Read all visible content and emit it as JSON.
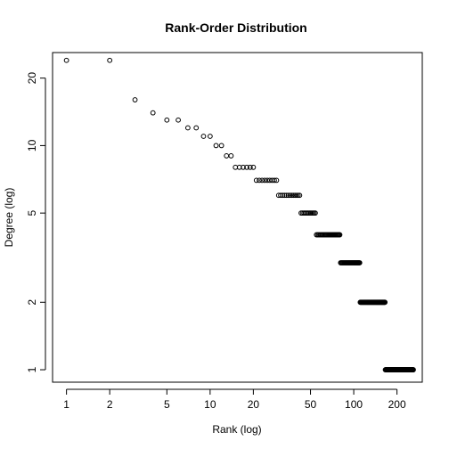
{
  "chart_data": {
    "type": "scatter",
    "title": "Rank-Order Distribution",
    "xlabel": "Rank (log)",
    "ylabel": "Degree (log)",
    "x_scale": "log",
    "y_scale": "log",
    "xlim": [
      0.8,
      300
    ],
    "ylim": [
      0.88,
      26
    ],
    "grid": false,
    "x_ticks": [
      1,
      2,
      5,
      10,
      20,
      50,
      100,
      200
    ],
    "x_tick_labels": [
      "1",
      "2",
      "5",
      "10",
      "20",
      "50",
      "100",
      "200"
    ],
    "y_ticks": [
      1,
      2,
      5,
      10,
      20
    ],
    "y_tick_labels": [
      "1",
      "2",
      "5",
      "10",
      "20"
    ],
    "degree_groups": [
      {
        "degree": 24,
        "ranks": [
          1,
          2
        ]
      },
      {
        "degree": 16,
        "ranks": [
          3,
          3
        ]
      },
      {
        "degree": 14,
        "ranks": [
          4,
          4
        ]
      },
      {
        "degree": 13,
        "ranks": [
          5,
          6
        ]
      },
      {
        "degree": 12,
        "ranks": [
          7,
          8
        ]
      },
      {
        "degree": 11,
        "ranks": [
          9,
          10
        ]
      },
      {
        "degree": 10,
        "ranks": [
          11,
          12
        ]
      },
      {
        "degree": 9,
        "ranks": [
          13,
          14
        ]
      },
      {
        "degree": 8,
        "ranks": [
          15,
          20
        ]
      },
      {
        "degree": 7,
        "ranks": [
          21,
          29
        ]
      },
      {
        "degree": 6,
        "ranks": [
          30,
          42
        ]
      },
      {
        "degree": 5,
        "ranks": [
          43,
          54
        ]
      },
      {
        "degree": 4,
        "ranks": [
          55,
          80
        ]
      },
      {
        "degree": 3,
        "ranks": [
          81,
          110
        ]
      },
      {
        "degree": 2,
        "ranks": [
          111,
          165
        ]
      },
      {
        "degree": 1,
        "ranks": [
          166,
          260
        ]
      }
    ]
  }
}
